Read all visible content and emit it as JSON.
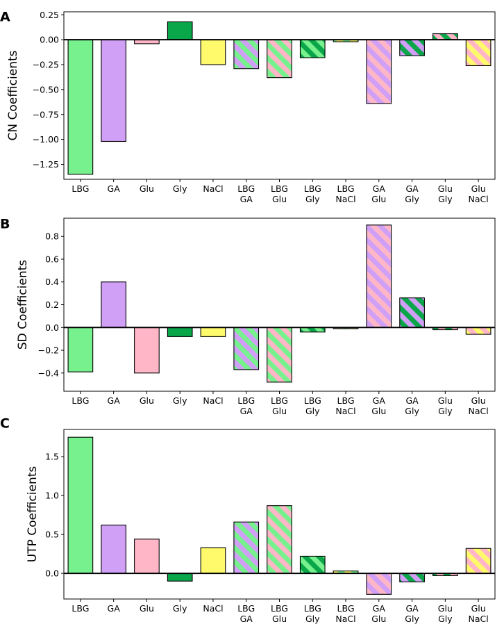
{
  "colors": {
    "LBG": "#77f08e",
    "GA": "#d09ff6",
    "Glu": "#ffb7c8",
    "Gly": "#0aa64a",
    "NaCl": "#fffa6c"
  },
  "chart_data": [
    {
      "panel": "A",
      "type": "bar",
      "ylabel": "CN Coefficients",
      "ylim": [
        -1.4,
        0.28
      ],
      "yticks": [
        {
          "value": 0.25,
          "label": "0.25"
        },
        {
          "value": 0.0,
          "label": "0.00"
        },
        {
          "value": -0.25,
          "label": "−0.25"
        },
        {
          "value": -0.5,
          "label": "−0.50"
        },
        {
          "value": -0.75,
          "label": "−0.75"
        },
        {
          "value": -1.0,
          "label": "−1.00"
        },
        {
          "value": -1.25,
          "label": "−1.25"
        }
      ],
      "bars": [
        {
          "label": [
            "LBG"
          ],
          "colors": [
            "LBG"
          ],
          "value": -1.35
        },
        {
          "label": [
            "GA"
          ],
          "colors": [
            "GA"
          ],
          "value": -1.02
        },
        {
          "label": [
            "Glu"
          ],
          "colors": [
            "Glu"
          ],
          "value": -0.04
        },
        {
          "label": [
            "Gly"
          ],
          "colors": [
            "Gly"
          ],
          "value": 0.18
        },
        {
          "label": [
            "NaCl"
          ],
          "colors": [
            "NaCl"
          ],
          "value": -0.25
        },
        {
          "label": [
            "LBG",
            "GA"
          ],
          "colors": [
            "LBG",
            "GA"
          ],
          "value": -0.29
        },
        {
          "label": [
            "LBG",
            "Glu"
          ],
          "colors": [
            "LBG",
            "Glu"
          ],
          "value": -0.38
        },
        {
          "label": [
            "LBG",
            "Gly"
          ],
          "colors": [
            "LBG",
            "Gly"
          ],
          "value": -0.18
        },
        {
          "label": [
            "LBG",
            "NaCl"
          ],
          "colors": [
            "LBG",
            "NaCl"
          ],
          "value": -0.02
        },
        {
          "label": [
            "GA",
            "Glu"
          ],
          "colors": [
            "GA",
            "Glu"
          ],
          "value": -0.64
        },
        {
          "label": [
            "GA",
            "Gly"
          ],
          "colors": [
            "GA",
            "Gly"
          ],
          "value": -0.16
        },
        {
          "label": [
            "Glu",
            "Gly"
          ],
          "colors": [
            "Glu",
            "Gly"
          ],
          "value": 0.06
        },
        {
          "label": [
            "Glu",
            "NaCl"
          ],
          "colors": [
            "Glu",
            "NaCl"
          ],
          "value": -0.26
        }
      ]
    },
    {
      "panel": "B",
      "type": "bar",
      "ylabel": "SD Coefficients",
      "ylim": [
        -0.56,
        0.96
      ],
      "yticks": [
        {
          "value": 0.8,
          "label": "0.8"
        },
        {
          "value": 0.6,
          "label": "0.6"
        },
        {
          "value": 0.4,
          "label": "0.4"
        },
        {
          "value": 0.2,
          "label": "0.2"
        },
        {
          "value": 0.0,
          "label": "0.0"
        },
        {
          "value": -0.2,
          "label": "−0.2"
        },
        {
          "value": -0.4,
          "label": "−0.4"
        }
      ],
      "bars": [
        {
          "label": [
            "LBG"
          ],
          "colors": [
            "LBG"
          ],
          "value": -0.39
        },
        {
          "label": [
            "GA"
          ],
          "colors": [
            "GA"
          ],
          "value": 0.4
        },
        {
          "label": [
            "Glu"
          ],
          "colors": [
            "Glu"
          ],
          "value": -0.4
        },
        {
          "label": [
            "Gly"
          ],
          "colors": [
            "Gly"
          ],
          "value": -0.08
        },
        {
          "label": [
            "NaCl"
          ],
          "colors": [
            "NaCl"
          ],
          "value": -0.08
        },
        {
          "label": [
            "LBG",
            "GA"
          ],
          "colors": [
            "LBG",
            "GA"
          ],
          "value": -0.37
        },
        {
          "label": [
            "LBG",
            "Glu"
          ],
          "colors": [
            "LBG",
            "Glu"
          ],
          "value": -0.48
        },
        {
          "label": [
            "LBG",
            "Gly"
          ],
          "colors": [
            "LBG",
            "Gly"
          ],
          "value": -0.04
        },
        {
          "label": [
            "LBG",
            "NaCl"
          ],
          "colors": [
            "LBG",
            "NaCl"
          ],
          "value": -0.01
        },
        {
          "label": [
            "GA",
            "Glu"
          ],
          "colors": [
            "GA",
            "Glu"
          ],
          "value": 0.9
        },
        {
          "label": [
            "GA",
            "Gly"
          ],
          "colors": [
            "GA",
            "Gly"
          ],
          "value": 0.26
        },
        {
          "label": [
            "Glu",
            "Gly"
          ],
          "colors": [
            "Glu",
            "Gly"
          ],
          "value": -0.02
        },
        {
          "label": [
            "Glu",
            "NaCl"
          ],
          "colors": [
            "Glu",
            "NaCl"
          ],
          "value": -0.06
        }
      ]
    },
    {
      "panel": "C",
      "type": "bar",
      "ylabel": "UTP Coefficients",
      "ylim": [
        -0.33,
        1.85
      ],
      "yticks": [
        {
          "value": 1.5,
          "label": "1.5"
        },
        {
          "value": 1.0,
          "label": "1.0"
        },
        {
          "value": 0.5,
          "label": "0.5"
        },
        {
          "value": 0.0,
          "label": "0.0"
        }
      ],
      "bars": [
        {
          "label": [
            "LBG"
          ],
          "colors": [
            "LBG"
          ],
          "value": 1.75
        },
        {
          "label": [
            "GA"
          ],
          "colors": [
            "GA"
          ],
          "value": 0.62
        },
        {
          "label": [
            "Glu"
          ],
          "colors": [
            "Glu"
          ],
          "value": 0.44
        },
        {
          "label": [
            "Gly"
          ],
          "colors": [
            "Gly"
          ],
          "value": -0.1
        },
        {
          "label": [
            "NaCl"
          ],
          "colors": [
            "NaCl"
          ],
          "value": 0.33
        },
        {
          "label": [
            "LBG",
            "GA"
          ],
          "colors": [
            "LBG",
            "GA"
          ],
          "value": 0.66
        },
        {
          "label": [
            "LBG",
            "Glu"
          ],
          "colors": [
            "LBG",
            "Glu"
          ],
          "value": 0.87
        },
        {
          "label": [
            "LBG",
            "Gly"
          ],
          "colors": [
            "LBG",
            "Gly"
          ],
          "value": 0.22
        },
        {
          "label": [
            "LBG",
            "NaCl"
          ],
          "colors": [
            "LBG",
            "NaCl"
          ],
          "value": 0.03
        },
        {
          "label": [
            "GA",
            "Glu"
          ],
          "colors": [
            "GA",
            "Glu"
          ],
          "value": -0.27
        },
        {
          "label": [
            "GA",
            "Gly"
          ],
          "colors": [
            "GA",
            "Gly"
          ],
          "value": -0.11
        },
        {
          "label": [
            "Glu",
            "Gly"
          ],
          "colors": [
            "Glu",
            "Gly"
          ],
          "value": -0.03
        },
        {
          "label": [
            "Glu",
            "NaCl"
          ],
          "colors": [
            "Glu",
            "NaCl"
          ],
          "value": 0.32
        }
      ]
    }
  ]
}
